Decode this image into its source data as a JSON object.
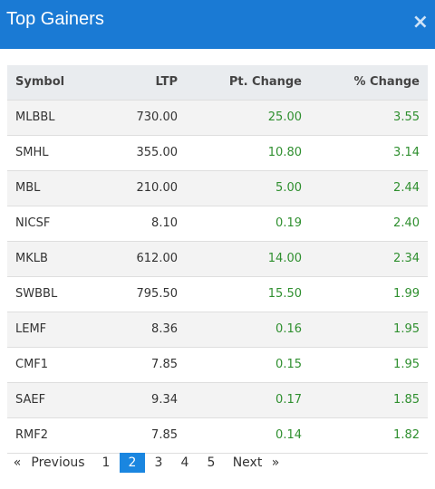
{
  "header": {
    "title": "Top Gainers",
    "close": "×"
  },
  "table": {
    "columns": [
      "Symbol",
      "LTP",
      "Pt. Change",
      "% Change"
    ],
    "rows": [
      [
        "MLBBL",
        "730.00",
        "25.00",
        "3.55"
      ],
      [
        "SMHL",
        "355.00",
        "10.80",
        "3.14"
      ],
      [
        "MBL",
        "210.00",
        "5.00",
        "2.44"
      ],
      [
        "NICSF",
        "8.10",
        "0.19",
        "2.40"
      ],
      [
        "MKLB",
        "612.00",
        "14.00",
        "2.34"
      ],
      [
        "SWBBL",
        "795.50",
        "15.50",
        "1.99"
      ],
      [
        "LEMF",
        "8.36",
        "0.16",
        "1.95"
      ],
      [
        "CMF1",
        "7.85",
        "0.15",
        "1.95"
      ],
      [
        "SAEF",
        "9.34",
        "0.17",
        "1.85"
      ],
      [
        "RMF2",
        "7.85",
        "0.14",
        "1.82"
      ]
    ]
  },
  "pagination": {
    "first": "«",
    "previous": "Previous",
    "pages": [
      "1",
      "2",
      "3",
      "4",
      "5"
    ],
    "active": 1,
    "next": "Next",
    "last": "»"
  }
}
